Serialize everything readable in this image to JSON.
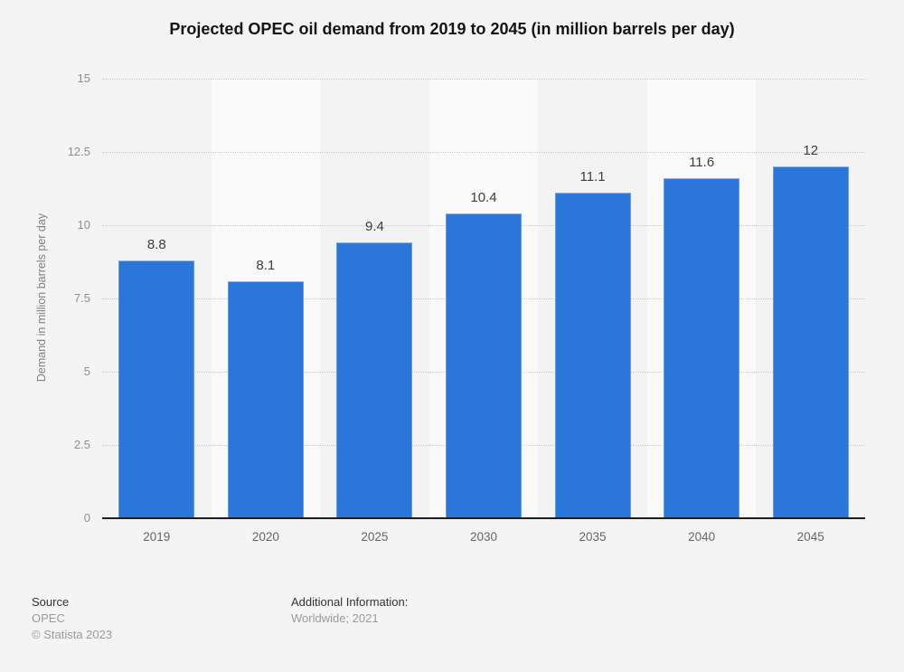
{
  "title": "Projected OPEC oil demand from 2019 to 2045 (in million barrels per day)",
  "chart_data": {
    "type": "bar",
    "title": "Projected OPEC oil demand from 2019 to 2045 (in million barrels per day)",
    "categories": [
      "2019",
      "2020",
      "2025",
      "2030",
      "2035",
      "2040",
      "2045"
    ],
    "values": [
      8.8,
      8.1,
      9.4,
      10.4,
      11.1,
      11.6,
      12
    ],
    "value_labels": [
      "8.8",
      "8.1",
      "9.4",
      "10.4",
      "11.1",
      "11.6",
      "12"
    ],
    "xlabel": "",
    "ylabel": "Demand in million barrels per day",
    "ylim": [
      0,
      15
    ],
    "yticks": [
      0,
      2.5,
      5,
      7.5,
      10,
      12.5,
      15
    ],
    "ytick_labels": [
      "0",
      "2.5",
      "5",
      "7.5",
      "10",
      "12.5",
      "15"
    ],
    "grid": true,
    "legend": false,
    "bar_color": "#2b76db",
    "band_color_odd": "#f3f3f4",
    "band_color_even": "#fafafa",
    "gridline_color": "#c9c9c9",
    "baseline_color": "#1f1f1f"
  },
  "footer": {
    "source_label": "Source",
    "source_value": "OPEC",
    "copyright": "© Statista 2023",
    "additional_label": "Additional Information:",
    "additional_value": "Worldwide; 2021"
  }
}
